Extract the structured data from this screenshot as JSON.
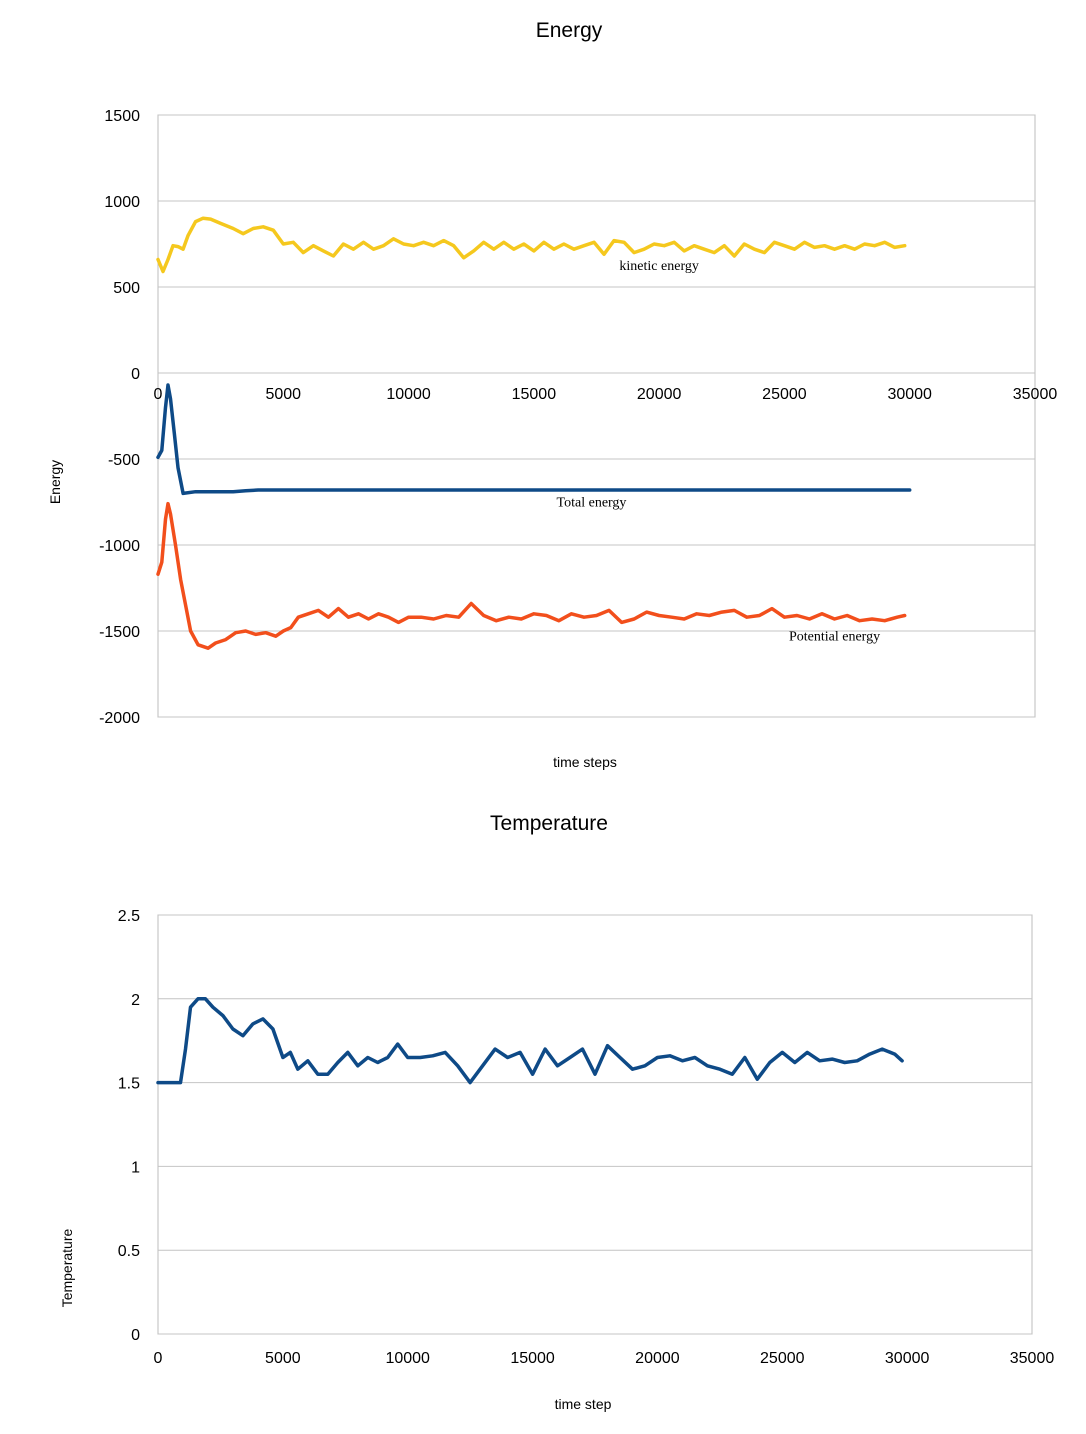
{
  "chart_data": [
    {
      "type": "line",
      "title": "Energy",
      "xlabel": "time steps",
      "ylabel": "Energy",
      "xlim": [
        0,
        35000
      ],
      "ylim": [
        -2000,
        1500
      ],
      "xticks": [
        0,
        5000,
        10000,
        15000,
        20000,
        25000,
        30000,
        35000
      ],
      "yticks": [
        1500,
        1000,
        500,
        0,
        -500,
        -1000,
        -1500,
        -2000
      ],
      "xtick_labels": [
        "0",
        "5000",
        "10000",
        "15000",
        "20000",
        "25000",
        "30000",
        "35000"
      ],
      "ytick_labels": [
        "1500",
        "1000",
        "500",
        "0",
        "-500",
        "-1000",
        "-1500",
        "-2000"
      ],
      "grid": true,
      "x_axis_crosses_at": 0,
      "series": [
        {
          "name": "kinetic energy",
          "color": "#f5c81e",
          "label_at": [
            20000,
            600
          ],
          "x": [
            0,
            200,
            400,
            600,
            800,
            1000,
            1200,
            1500,
            1800,
            2100,
            2500,
            3000,
            3400,
            3800,
            4200,
            4600,
            5000,
            5400,
            5800,
            6200,
            6600,
            7000,
            7400,
            7800,
            8200,
            8600,
            9000,
            9400,
            9800,
            10200,
            10600,
            11000,
            11400,
            11800,
            12200,
            12600,
            13000,
            13400,
            13800,
            14200,
            14600,
            15000,
            15400,
            15800,
            16200,
            16600,
            17000,
            17400,
            17800,
            18200,
            18600,
            19000,
            19400,
            19800,
            20200,
            20600,
            21000,
            21400,
            21800,
            22200,
            22600,
            23000,
            23400,
            23800,
            24200,
            24600,
            25000,
            25400,
            25800,
            26200,
            26600,
            27000,
            27400,
            27800,
            28200,
            28600,
            29000,
            29400,
            29800
          ],
          "y": [
            660,
            590,
            660,
            740,
            735,
            720,
            800,
            880,
            900,
            895,
            870,
            840,
            810,
            840,
            850,
            830,
            750,
            760,
            700,
            740,
            710,
            680,
            750,
            720,
            760,
            720,
            740,
            780,
            750,
            740,
            760,
            740,
            770,
            740,
            670,
            710,
            760,
            720,
            760,
            720,
            750,
            710,
            760,
            720,
            750,
            720,
            740,
            760,
            690,
            770,
            760,
            700,
            720,
            750,
            740,
            760,
            710,
            740,
            720,
            700,
            740,
            680,
            750,
            720,
            700,
            760,
            740,
            720,
            760,
            730,
            740,
            720,
            740,
            720,
            750,
            740,
            760,
            730,
            740
          ]
        },
        {
          "name": "Total energy",
          "color": "#0e4a87",
          "label_at": [
            17300,
            -775
          ],
          "x": [
            0,
            150,
            300,
            400,
            500,
            650,
            800,
            1000,
            1500,
            2000,
            2500,
            3000,
            3500,
            4000,
            5000,
            10000,
            15000,
            20000,
            25000,
            30000
          ],
          "y": [
            -490,
            -450,
            -200,
            -70,
            -150,
            -350,
            -550,
            -700,
            -690,
            -690,
            -690,
            -690,
            -685,
            -680,
            -680,
            -680,
            -680,
            -680,
            -680,
            -680
          ],
          "last_x": 30000
        },
        {
          "name": "Potential energy",
          "color": "#f24f1c",
          "label_at": [
            27000,
            -1555
          ],
          "x": [
            0,
            150,
            300,
            400,
            500,
            700,
            900,
            1100,
            1300,
            1600,
            2000,
            2300,
            2700,
            3100,
            3500,
            3900,
            4300,
            4700,
            5000,
            5300,
            5600,
            6000,
            6400,
            6800,
            7200,
            7600,
            8000,
            8400,
            8800,
            9200,
            9600,
            10000,
            10500,
            11000,
            11500,
            12000,
            12500,
            13000,
            13500,
            14000,
            14500,
            15000,
            15500,
            16000,
            16500,
            17000,
            17500,
            18000,
            18500,
            19000,
            19500,
            20000,
            20500,
            21000,
            21500,
            22000,
            22500,
            23000,
            23500,
            24000,
            24500,
            25000,
            25500,
            26000,
            26500,
            27000,
            27500,
            28000,
            28500,
            29000,
            29500,
            29800
          ],
          "y": [
            -1170,
            -1100,
            -850,
            -760,
            -820,
            -1000,
            -1200,
            -1350,
            -1500,
            -1580,
            -1600,
            -1570,
            -1550,
            -1510,
            -1500,
            -1520,
            -1510,
            -1530,
            -1500,
            -1480,
            -1420,
            -1400,
            -1380,
            -1420,
            -1370,
            -1420,
            -1400,
            -1430,
            -1400,
            -1420,
            -1450,
            -1420,
            -1420,
            -1430,
            -1410,
            -1420,
            -1340,
            -1410,
            -1440,
            -1420,
            -1430,
            -1400,
            -1410,
            -1440,
            -1400,
            -1420,
            -1410,
            -1380,
            -1450,
            -1430,
            -1390,
            -1410,
            -1420,
            -1430,
            -1400,
            -1410,
            -1390,
            -1380,
            -1420,
            -1410,
            -1370,
            -1420,
            -1410,
            -1430,
            -1400,
            -1430,
            -1410,
            -1440,
            -1430,
            -1440,
            -1420,
            -1410
          ]
        }
      ]
    },
    {
      "type": "line",
      "title": "Temperature",
      "xlabel": "time step",
      "ylabel": "Temperature",
      "xlim": [
        0,
        35000
      ],
      "ylim": [
        0,
        2.5
      ],
      "xticks": [
        0,
        5000,
        10000,
        15000,
        20000,
        25000,
        30000,
        35000
      ],
      "yticks": [
        2.5,
        2,
        1.5,
        1,
        0.5,
        0
      ],
      "xtick_labels": [
        "0",
        "5000",
        "10000",
        "15000",
        "20000",
        "25000",
        "30000",
        "35000"
      ],
      "ytick_labels": [
        "2.5",
        "2",
        "1.5",
        "1",
        "0.5",
        "0"
      ],
      "grid": true,
      "series": [
        {
          "color": "#0e4a87",
          "x": [
            0,
            300,
            600,
            900,
            1100,
            1300,
            1600,
            1900,
            2200,
            2600,
            3000,
            3400,
            3800,
            4200,
            4600,
            5000,
            5300,
            5600,
            6000,
            6400,
            6800,
            7200,
            7600,
            8000,
            8400,
            8800,
            9200,
            9600,
            10000,
            10500,
            11000,
            11500,
            12000,
            12500,
            13000,
            13500,
            14000,
            14500,
            15000,
            15500,
            16000,
            16500,
            17000,
            17500,
            18000,
            18500,
            19000,
            19500,
            20000,
            20500,
            21000,
            21500,
            22000,
            22500,
            23000,
            23500,
            24000,
            24500,
            25000,
            25500,
            26000,
            26500,
            27000,
            27500,
            28000,
            28500,
            29000,
            29500,
            29800
          ],
          "y": [
            1.5,
            1.5,
            1.5,
            1.5,
            1.7,
            1.95,
            2.0,
            2.0,
            1.95,
            1.9,
            1.82,
            1.78,
            1.85,
            1.88,
            1.82,
            1.65,
            1.68,
            1.58,
            1.63,
            1.55,
            1.55,
            1.62,
            1.68,
            1.6,
            1.65,
            1.62,
            1.65,
            1.73,
            1.65,
            1.65,
            1.66,
            1.68,
            1.6,
            1.5,
            1.6,
            1.7,
            1.65,
            1.68,
            1.55,
            1.7,
            1.6,
            1.65,
            1.7,
            1.55,
            1.72,
            1.65,
            1.58,
            1.6,
            1.65,
            1.66,
            1.63,
            1.65,
            1.6,
            1.58,
            1.55,
            1.65,
            1.52,
            1.62,
            1.68,
            1.62,
            1.68,
            1.63,
            1.64,
            1.62,
            1.63,
            1.67,
            1.7,
            1.67,
            1.63
          ]
        }
      ]
    }
  ]
}
